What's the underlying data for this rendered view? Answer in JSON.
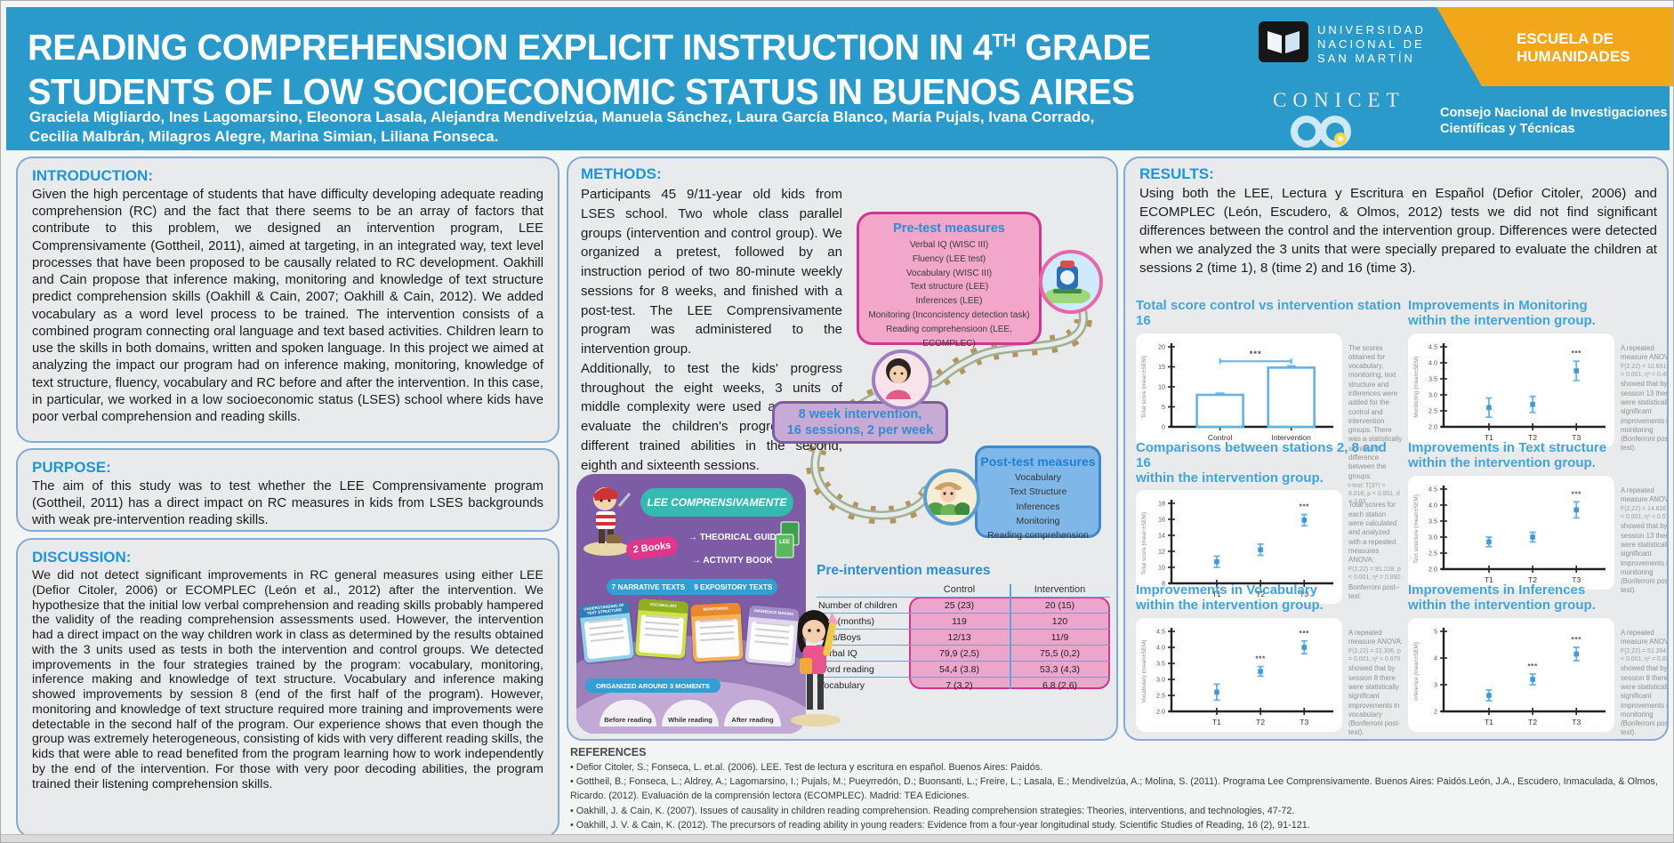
{
  "header": {
    "title_pre": "READING COMPREHENSION EXPLICIT INSTRUCTION IN 4",
    "title_sup": "TH",
    "title_post": " GRADE",
    "title_line2": "STUDENTS OF LOW SOCIOECONOMIC STATUS IN BUENOS AIRES",
    "authors_line1": "Graciela Migliardo, Ines Lagomarsino, Eleonora Lasala, Alejandra Mendivelzúa, Manuela Sánchez, Laura García Blanco, María Pujals, Ivana Corrado,",
    "authors_line2": "Cecilia Malbrán, Milagros Alegre, Marina Simian, Liliana Fonseca.",
    "unsam_line1": "UNIVERSIDAD",
    "unsam_line2": "NACIONAL DE",
    "unsam_line3": "SAN MARTÍN",
    "escuela_line1": "ESCUELA DE",
    "escuela_line2": "HUMANIDADES",
    "conicet_name": "CONICET",
    "conicet_desc1": "Consejo Nacional de Investigaciones",
    "conicet_desc2": "Científicas y Técnicas"
  },
  "colors": {
    "header_blue": "#2a9aca",
    "heading_blue": "#1d97d3",
    "panel_border": "#84a9d4",
    "pink_fill": "#f2a6c9",
    "pink_border": "#d2358f",
    "purple_fill": "#c7abd4",
    "purple_border": "#7c5ca8",
    "blue_box_fill": "#7fb7e8",
    "blue_box_border": "#3f88cc",
    "chart_blue": "#66b2e4",
    "orange_banner": "#f2a71b",
    "lee_purple": "#7d5ca5"
  },
  "introduction": {
    "heading": "INTRODUCTION:",
    "body": "Given the high percentage of students that have difficulty developing adequate reading comprehension (RC) and the fact that there seems to be an array of factors that contribute to this problem, we designed an intervention program, LEE Comprensivamente (Gottheil, 2011), aimed at targeting, in an integrated way, text level processes that have been proposed to be causally related to RC development. Oakhill and Cain propose that inference making, monitoring and knowledge of text structure predict comprehension skills (Oakhill & Cain, 2007; Oakhill & Cain, 2012). We added vocabulary as a word level process to be trained. The intervention consists of a combined program connecting oral language and text based activities. Children learn to use the skills in both domains, written and spoken language. In this project we aimed at analyzing the impact our program had on inference making, monitoring, knowledge of text structure, fluency, vocabulary and RC before and after the intervention. In this case, in particular, we worked in a low socioeconomic status (LSES) school where kids have poor verbal comprehension and reading skills."
  },
  "purpose": {
    "heading": "PURPOSE:",
    "body": "The aim of this study was to test whether the LEE Comprensivamente program (Gottheil, 2011) has a direct impact on RC measures in kids from LSES backgrounds with weak pre-intervention reading skills."
  },
  "discussion": {
    "heading": "DISCUSSION:",
    "body": "We did not detect significant improvements in RC general measures using either LEE (Defior Citoler, 2006) or ECOMPLEC (León et al., 2012) after the intervention. We hypothesize that the initial low verbal comprehension and reading skills probably hampered the validity of the reading comprehension assessments used. However, the intervention had a direct impact on the way children work in class as determined by the results obtained with the 3 units used as tests in both the intervention and control groups. We detected improvements in the four strategies trained by the program: vocabulary, monitoring, inference making and knowledge of text structure. Vocabulary and inference making showed improvements by session 8 (end of the first half of the program). However, monitoring and knowledge of text structure required more training and improvements were detectable in the second half of the program. Our experience shows that even though the group was extremely heterogeneous, consisting of kids with very different reading skills, the kids that were able to read benefited from the program learning how to work independently by the end of the intervention. For those with very poor decoding abilities, the program trained their listening comprehension skills."
  },
  "methods": {
    "heading": "METHODS:",
    "para1": "Participants 45 9/11-year old kids from LSES school. Two whole class parallel groups (intervention and control group). We organized a pretest, followed by an instruction period of two 80-minute weekly sessions for 8 weeks, and finished with a post-test. The LEE Comprensivamente program was administered to the intervention group.",
    "para2": "Additionally, to test the kids' progress throughout the eight weeks, 3 units of middle complexity were used as a test to evaluate the children's progress in the different trained abilities in the second, eighth and sixteenth sessions."
  },
  "pretest": {
    "title": "Pre-test measures",
    "items": [
      "Verbal IQ (WISC III)",
      "Fluency (LEE test)",
      "Vocabulary (WISC III)",
      "Text structure (LEE)",
      "Inferences (LEE)",
      "Monitoring (Inconcistency detection task)",
      "Reading comprehensioon (LEE, ECOMPLEC)"
    ]
  },
  "intervention_badge": {
    "line1": "8 week intervention,",
    "line2": "16 sessions, 2 per week"
  },
  "posttest": {
    "title": "Post-test measures",
    "items": [
      "Vocabulary",
      "Text Structure",
      "Inferences",
      "Monitoring",
      "Reading comprehension"
    ]
  },
  "lee_program": {
    "title": "LEE COMPRENSIVAMENTE",
    "books_label": "2 Books",
    "book_item1": "THEORICAL GUIDE",
    "book_item2": "ACTIVITY BOOK",
    "book_icon_label": "LEE",
    "texts_pill_a": "7 NARRATIVE TEXTS",
    "texts_pill_b": "9 EXPOSITORY TEXTS",
    "cards": [
      "UNDERSTANDING OF TEXT STRUCTURE",
      "VOCABULARY",
      "MONITORING",
      "INFERENCE MAKING"
    ],
    "moments_pill": "ORGANIZED AROUND 3 MOMENTS",
    "moments": [
      "Before reading",
      "While reading",
      "After reading"
    ]
  },
  "pre_intervention_table": {
    "title": "Pre-intervention measures",
    "columns": [
      "Control",
      "Intervention"
    ],
    "rows": [
      {
        "label": "Number of children",
        "control": "25 (23)",
        "intervention": "20 (15)"
      },
      {
        "label": "Age (months)",
        "control": "119",
        "intervention": "120"
      },
      {
        "label": "Girls/Boys",
        "control": "12/13",
        "intervention": "11/9"
      },
      {
        "label": "Verbal IQ",
        "control": "79,9 (2,5)",
        "intervention": "75,5 (0,2)"
      },
      {
        "label": "Word reading",
        "control": "54,4 (3.8)",
        "intervention": "53,3 (4,3)"
      },
      {
        "label": "Vocabulary",
        "control": "7 (3,2)",
        "intervention": "6,8 (2,6)"
      }
    ]
  },
  "results": {
    "heading": "RESULTS:",
    "body": "Using both the LEE, Lectura y Escritura en Español (Defior Citoler, 2006) and ECOMPLEC (León, Escudero, & Olmos, 2012) tests we did not find significant differences between the control and the intervention group. Differences were detected when we analyzed the 3 units that were specially prepared to evaluate the children at sessions 2 (time 1), 8 (time 2) and 16 (time 3)."
  },
  "chart_data": [
    {
      "type": "bar",
      "title_lines": [
        "Total score control vs intervention station 16"
      ],
      "categories": [
        "Control",
        "Intervention"
      ],
      "values": [
        8.0,
        14.8
      ],
      "errors": [
        0.4,
        0.4
      ],
      "ylabel": "Total score (mean±SEM)",
      "ylim": [
        0,
        20
      ],
      "yticks": [
        0,
        5,
        10,
        15,
        20
      ],
      "ytick_labels": [
        "0",
        "5",
        "10",
        "15",
        "20"
      ],
      "sig_bracket": {
        "y": 16.4,
        "label": "***"
      },
      "annotation": [
        {
          "t": "The scores obtained for vocabulary, monitoring, text structure and inferences were added for the control and intervention groups. There was a statistically significant difference between the groups:",
          "stat": false
        },
        {
          "t": "t-test: T(37) = 8.018, p < 0.001, d = 2.63",
          "stat": true
        }
      ]
    },
    {
      "type": "scatter",
      "title_lines": [
        "Improvements in Monitoring",
        "within the intervention group."
      ],
      "categories": [
        "T1",
        "T2",
        "T3"
      ],
      "values": [
        2.6,
        2.7,
        3.75
      ],
      "errors": [
        0.3,
        0.25,
        0.3
      ],
      "ylabel": "Monitoring (mean±SEM)",
      "ylim": [
        2.0,
        4.5
      ],
      "yticks": [
        2.0,
        2.5,
        3.0,
        3.5,
        4.0,
        4.5
      ],
      "ytick_labels": [
        "2.0",
        "2.5",
        "3.0",
        "3.5",
        "4.0",
        "4.5"
      ],
      "sig_points": [
        2
      ],
      "annotation": [
        {
          "t": "A repeated measure ANOVA:",
          "stat": false
        },
        {
          "t": "F(2,22) = 10.651, p = 0.001, η² = 0.492",
          "stat": true
        },
        {
          "t": "showed that by session 13 there were statistically significant improvements in monitoring (Bonferroni post-test).",
          "stat": false
        }
      ]
    },
    {
      "type": "scatter",
      "title_lines": [
        "Comparisons between stations 2, 8 and 16",
        "within the intervention group."
      ],
      "categories": [
        "T1",
        "T2",
        "T3"
      ],
      "values": [
        10.7,
        12.2,
        15.9
      ],
      "errors": [
        0.7,
        0.7,
        0.7
      ],
      "ylabel": "Total score (mean±SEM)",
      "ylim": [
        8,
        18
      ],
      "yticks": [
        8,
        10,
        12,
        14,
        16,
        18
      ],
      "ytick_labels": [
        "8",
        "10",
        "12",
        "14",
        "16",
        "18"
      ],
      "sig_points": [
        2
      ],
      "annotation": [
        {
          "t": "Total scores for each station were calculated and analyzed with a repeated measures ANOVA:",
          "stat": false
        },
        {
          "t": "F(2,22) = 91.228, p < 0.001, η² = 0.892.",
          "stat": true
        },
        {
          "t": "Bonferroni post–test.",
          "stat": false
        }
      ]
    },
    {
      "type": "scatter",
      "title_lines": [
        "Improvements in Text structure",
        "within the intervention group."
      ],
      "categories": [
        "T1",
        "T2",
        "T3"
      ],
      "values": [
        2.85,
        3.0,
        3.85
      ],
      "errors": [
        0.15,
        0.15,
        0.25
      ],
      "ylabel": "Text structure (mean±SEM)",
      "ylim": [
        2.0,
        4.5
      ],
      "yticks": [
        2.0,
        2.5,
        3.0,
        3.5,
        4.0,
        4.5
      ],
      "ytick_labels": [
        "2.0",
        "2.5",
        "3.0",
        "3.5",
        "4.0",
        "4.5"
      ],
      "sig_points": [
        2
      ],
      "annotation": [
        {
          "t": "A repeated measure ANOVA:",
          "stat": false
        },
        {
          "t": "F(2,22) = 14.826, p < 0.001, η² = 0.574",
          "stat": true
        },
        {
          "t": "showed that by session 13 there were statistically significant improvements in monitoring (Bonferroni post-test).",
          "stat": false
        }
      ]
    },
    {
      "type": "scatter",
      "title_lines": [
        "Improvements in Vocabulary",
        "within the intervention group."
      ],
      "categories": [
        "T1",
        "T2",
        "T3"
      ],
      "values": [
        2.6,
        3.25,
        4.0
      ],
      "errors": [
        0.25,
        0.15,
        0.2
      ],
      "ylabel": "Vocabulary (mean±SEM)",
      "ylim": [
        2.0,
        4.5
      ],
      "yticks": [
        2.0,
        2.5,
        3.0,
        3.5,
        4.0,
        4.5
      ],
      "ytick_labels": [
        "2.0",
        "2.5",
        "3.0",
        "3.5",
        "4.0",
        "4.5"
      ],
      "sig_points": [
        1,
        2
      ],
      "annotation": [
        {
          "t": "A repeated measure ANOVA:",
          "stat": false
        },
        {
          "t": "F(2,22) = 22.306, p = 0.001, η² = 0.670",
          "stat": true
        },
        {
          "t": "showed that by session 8 there were statistically significant improvements in vocabulary (Bonferroni post-test).",
          "stat": false
        }
      ]
    },
    {
      "type": "scatter",
      "title_lines": [
        "Improvements in Inferences",
        "within the intervention group."
      ],
      "categories": [
        "T1",
        "T2",
        "T3"
      ],
      "values": [
        2.6,
        3.2,
        4.15
      ],
      "errors": [
        0.2,
        0.2,
        0.25
      ],
      "ylabel": "Inference (mean±SEM)",
      "ylim": [
        2,
        5
      ],
      "yticks": [
        2,
        3,
        4,
        5
      ],
      "ytick_labels": [
        "2",
        "3",
        "4",
        "5"
      ],
      "sig_points": [
        1,
        2
      ],
      "annotation": [
        {
          "t": "A repeated measure ANOVA:",
          "stat": false
        },
        {
          "t": "F(2,22) = 51.264, p < 0.001, η² = 0.823",
          "stat": true
        },
        {
          "t": "showed that by session 8 there were statistically significant improvements in monitoring (Bonferroni post-test).",
          "stat": false
        }
      ]
    }
  ],
  "references": {
    "heading": "REFERENCES",
    "items": [
      "• Defior Citoler, S.; Fonseca, L. et.al. (2006). LEE. Test de lectura y escritura en español. Buenos Aires: Paidós.",
      "• Gottheil, B.; Fonseca, L.; Aldrey, A.; Lagomarsino, I.; Pujals, M.; Pueyrredón, D.; Buonsanti, L.; Freire, L.; Lasala, E.; Mendivelzúa, A.; Molina, S. (2011). Programa Lee Comprensivamente. Buenos Aires: Paidós.León, J.A., Escudero, Inmaculada, & Olmos, Ricardo. (2012). Evaluación de la comprensión lectora (ECOMPLEC). Madrid: TEA Ediciones.",
      "• Oakhill, J. & Cain, K. (2007). Issues of causality in children reading comprehension. Reading comprehension strategies: Theories, interventions, and technologies, 47-72.",
      "• Oakhill, J. V. & Cain, K. (2012). The precursors of reading ability in young readers: Evidence from a four-year longitudinal study. Scientific Studies of Reading, 16 (2), 91-121."
    ]
  }
}
